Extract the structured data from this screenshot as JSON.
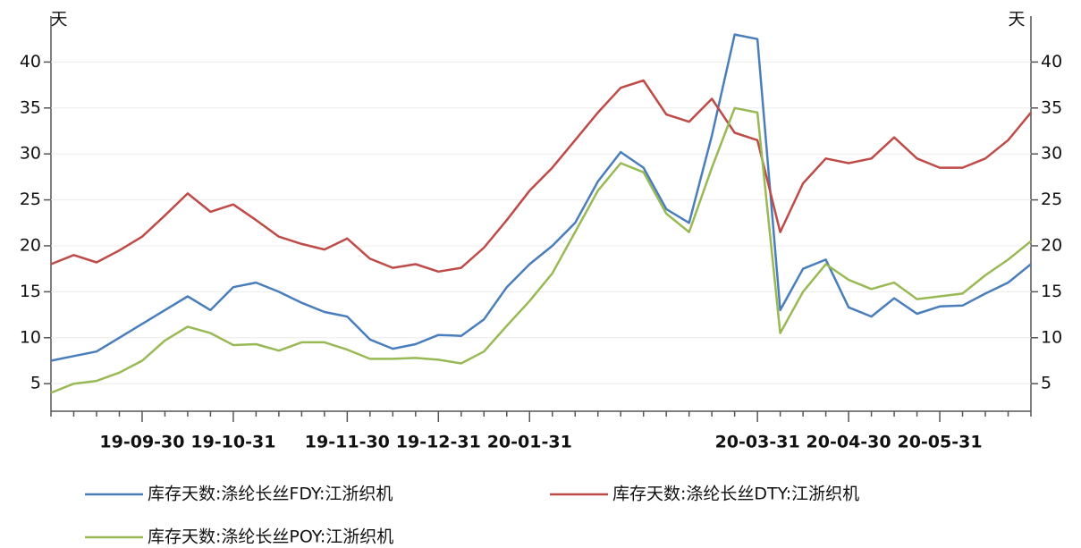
{
  "chart_data": {
    "type": "line",
    "y_label": "天",
    "y2_label": "天",
    "categories": [
      null,
      null,
      null,
      null,
      "19-09-30",
      null,
      null,
      null,
      "19-10-31",
      null,
      null,
      null,
      null,
      "19-11-30",
      null,
      null,
      null,
      "19-12-31",
      null,
      null,
      null,
      "20-01-31",
      null,
      null,
      null,
      null,
      null,
      null,
      null,
      null,
      null,
      "20-03-31",
      null,
      null,
      null,
      "20-04-30",
      null,
      null,
      null,
      "20-05-31",
      null,
      null,
      null,
      null
    ],
    "series": [
      {
        "name": "库存天数:涤纶长丝FDY:江浙织机",
        "color": "#4a7ebb",
        "values": [
          7.5,
          8,
          8.5,
          10,
          11.5,
          13,
          14.5,
          13,
          15.5,
          16,
          15,
          13.8,
          12.8,
          12.3,
          9.8,
          8.8,
          9.3,
          10.3,
          10.2,
          12,
          15.5,
          18,
          20,
          22.5,
          27,
          30.2,
          28.5,
          24,
          22.5,
          32,
          43,
          42.5,
          13,
          17.5,
          18.5,
          13.3,
          12.3,
          14.3,
          12.6,
          13.4,
          13.5,
          14.8,
          16,
          18
        ]
      },
      {
        "name": "库存天数:涤纶长丝DTY:江浙织机",
        "color": "#be4b48",
        "values": [
          18,
          19,
          18.2,
          19.5,
          21,
          23.3,
          25.7,
          23.7,
          24.5,
          22.8,
          21,
          20.2,
          19.6,
          20.8,
          18.6,
          17.6,
          18,
          17.2,
          17.6,
          19.8,
          22.8,
          26,
          28.5,
          31.5,
          34.5,
          37.2,
          38,
          34.3,
          33.5,
          36,
          32.3,
          31.5,
          21.5,
          26.8,
          29.5,
          29,
          29.5,
          31.8,
          29.5,
          28.5,
          28.5,
          29.5,
          31.5,
          34.5
        ]
      },
      {
        "name": "库存天数:涤纶长丝POY:江浙织机",
        "color": "#98b954",
        "values": [
          4,
          5,
          5.3,
          6.2,
          7.5,
          9.7,
          11.2,
          10.5,
          9.2,
          9.3,
          8.6,
          9.5,
          9.5,
          8.7,
          7.7,
          7.7,
          7.8,
          7.6,
          7.2,
          8.5,
          11.3,
          14,
          17,
          21.5,
          26,
          29,
          28,
          23.5,
          21.5,
          28.5,
          35,
          34.5,
          10.5,
          15,
          18,
          16.3,
          15.3,
          16,
          14.2,
          14.5,
          14.8,
          16.8,
          18.5,
          20.5
        ]
      }
    ],
    "ylim": [
      2,
      45
    ],
    "yticks": [
      5,
      10,
      15,
      20,
      25,
      30,
      35,
      40
    ],
    "y2lim": [
      2,
      45
    ],
    "y2ticks": [
      5,
      10,
      15,
      20,
      25,
      30,
      35,
      40
    ],
    "legend": "bottom"
  }
}
